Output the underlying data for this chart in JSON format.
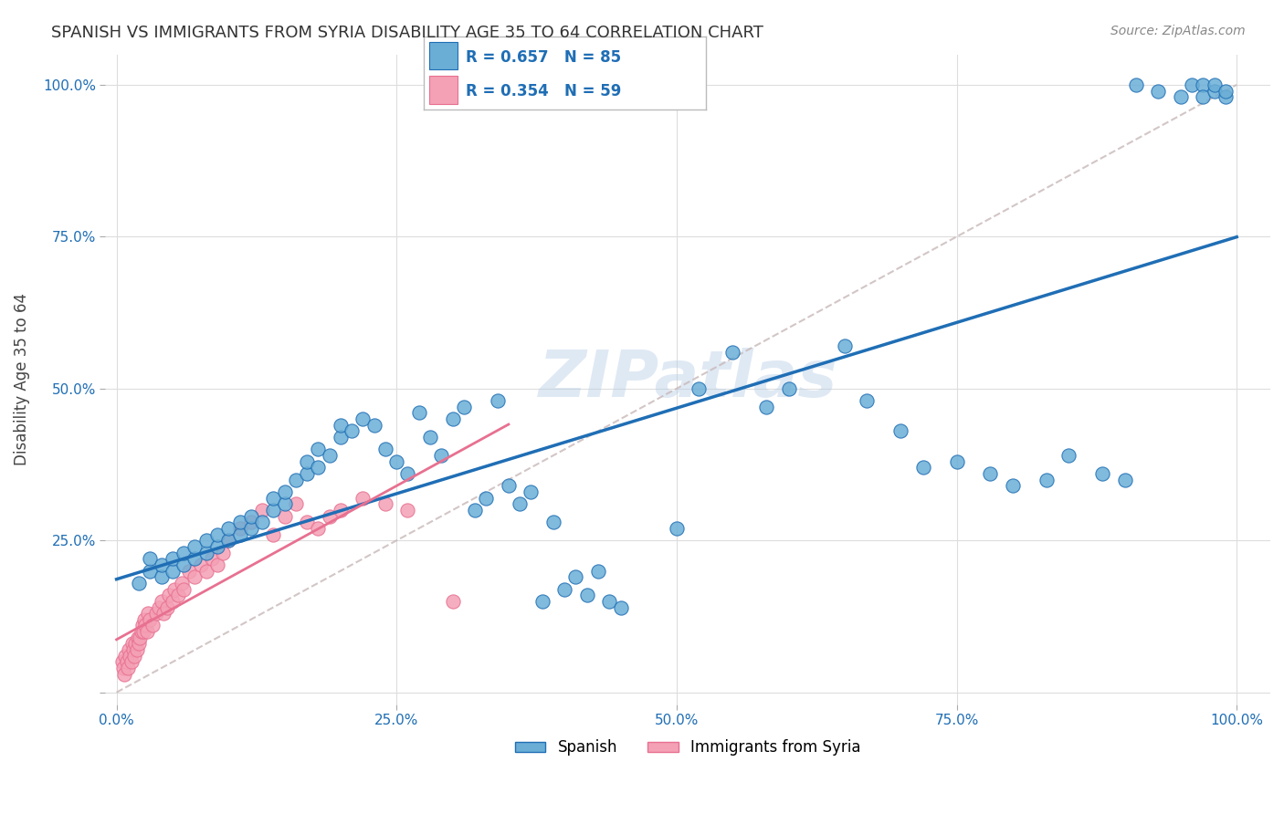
{
  "title": "SPANISH VS IMMIGRANTS FROM SYRIA DISABILITY AGE 35 TO 64 CORRELATION CHART",
  "source": "Source: ZipAtlas.com",
  "ylabel": "Disability Age 35 to 64",
  "x_ticks": [
    0.0,
    0.25,
    0.5,
    0.75,
    1.0
  ],
  "x_tick_labels": [
    "0.0%",
    "25.0%",
    "50.0%",
    "75.0%",
    "100.0%"
  ],
  "y_ticks": [
    0.0,
    0.25,
    0.5,
    0.75,
    1.0
  ],
  "y_tick_labels": [
    "",
    "25.0%",
    "50.0%",
    "75.0%",
    "100.0%"
  ],
  "legend_label1": "Spanish",
  "legend_label2": "Immigrants from Syria",
  "R1": "0.657",
  "N1": "85",
  "R2": "0.354",
  "N2": "59",
  "color_blue": "#6aaed6",
  "color_blue_line": "#1f6eb5",
  "color_pink": "#f4a0b5",
  "color_pink_line": "#e87090",
  "color_diag": "#c8b8b8",
  "watermark": "ZIPatlas",
  "blue_x": [
    0.02,
    0.03,
    0.03,
    0.04,
    0.04,
    0.05,
    0.05,
    0.06,
    0.06,
    0.07,
    0.07,
    0.08,
    0.08,
    0.09,
    0.09,
    0.1,
    0.1,
    0.11,
    0.11,
    0.12,
    0.12,
    0.13,
    0.14,
    0.14,
    0.15,
    0.15,
    0.16,
    0.17,
    0.17,
    0.18,
    0.18,
    0.19,
    0.2,
    0.2,
    0.21,
    0.22,
    0.23,
    0.24,
    0.25,
    0.26,
    0.27,
    0.28,
    0.29,
    0.3,
    0.31,
    0.32,
    0.33,
    0.34,
    0.35,
    0.36,
    0.37,
    0.38,
    0.39,
    0.4,
    0.41,
    0.42,
    0.43,
    0.44,
    0.45,
    0.5,
    0.52,
    0.55,
    0.58,
    0.6,
    0.65,
    0.67,
    0.7,
    0.72,
    0.75,
    0.78,
    0.8,
    0.83,
    0.85,
    0.88,
    0.9,
    0.91,
    0.93,
    0.95,
    0.96,
    0.97,
    0.97,
    0.98,
    0.98,
    0.99,
    0.99
  ],
  "blue_y": [
    0.18,
    0.2,
    0.22,
    0.19,
    0.21,
    0.2,
    0.22,
    0.21,
    0.23,
    0.22,
    0.24,
    0.23,
    0.25,
    0.24,
    0.26,
    0.25,
    0.27,
    0.26,
    0.28,
    0.27,
    0.29,
    0.28,
    0.3,
    0.32,
    0.31,
    0.33,
    0.35,
    0.36,
    0.38,
    0.37,
    0.4,
    0.39,
    0.42,
    0.44,
    0.43,
    0.45,
    0.44,
    0.4,
    0.38,
    0.36,
    0.46,
    0.42,
    0.39,
    0.45,
    0.47,
    0.3,
    0.32,
    0.48,
    0.34,
    0.31,
    0.33,
    0.15,
    0.28,
    0.17,
    0.19,
    0.16,
    0.2,
    0.15,
    0.14,
    0.27,
    0.5,
    0.56,
    0.47,
    0.5,
    0.57,
    0.48,
    0.43,
    0.37,
    0.38,
    0.36,
    0.34,
    0.35,
    0.39,
    0.36,
    0.35,
    1.0,
    0.99,
    0.98,
    1.0,
    1.0,
    0.98,
    0.99,
    1.0,
    0.98,
    0.99
  ],
  "pink_x": [
    0.005,
    0.006,
    0.007,
    0.008,
    0.009,
    0.01,
    0.011,
    0.012,
    0.013,
    0.014,
    0.015,
    0.016,
    0.017,
    0.018,
    0.019,
    0.02,
    0.021,
    0.022,
    0.023,
    0.024,
    0.025,
    0.026,
    0.027,
    0.028,
    0.03,
    0.032,
    0.035,
    0.038,
    0.04,
    0.042,
    0.045,
    0.047,
    0.05,
    0.052,
    0.055,
    0.058,
    0.06,
    0.065,
    0.07,
    0.075,
    0.08,
    0.085,
    0.09,
    0.095,
    0.1,
    0.11,
    0.12,
    0.13,
    0.14,
    0.15,
    0.16,
    0.17,
    0.18,
    0.19,
    0.2,
    0.22,
    0.24,
    0.26,
    0.3
  ],
  "pink_y": [
    0.05,
    0.04,
    0.03,
    0.06,
    0.05,
    0.04,
    0.07,
    0.06,
    0.05,
    0.08,
    0.07,
    0.06,
    0.08,
    0.07,
    0.09,
    0.08,
    0.09,
    0.1,
    0.11,
    0.1,
    0.12,
    0.11,
    0.1,
    0.13,
    0.12,
    0.11,
    0.13,
    0.14,
    0.15,
    0.13,
    0.14,
    0.16,
    0.15,
    0.17,
    0.16,
    0.18,
    0.17,
    0.2,
    0.19,
    0.21,
    0.2,
    0.22,
    0.21,
    0.23,
    0.25,
    0.27,
    0.28,
    0.3,
    0.26,
    0.29,
    0.31,
    0.28,
    0.27,
    0.29,
    0.3,
    0.32,
    0.31,
    0.3,
    0.15
  ]
}
